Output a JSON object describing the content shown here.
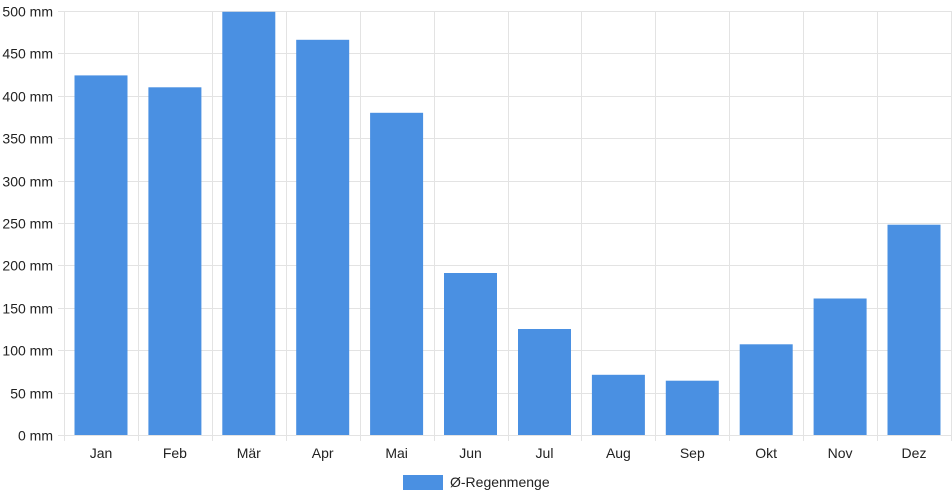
{
  "chart_data": {
    "type": "bar",
    "categories": [
      "Jan",
      "Feb",
      "Mär",
      "Apr",
      "Mai",
      "Jun",
      "Jul",
      "Aug",
      "Sep",
      "Okt",
      "Nov",
      "Dez"
    ],
    "series": [
      {
        "name": "Ø-Regenmenge",
        "values": [
          424,
          410,
          499,
          466,
          380,
          191,
          125,
          71,
          64,
          107,
          161,
          248
        ],
        "color": "#4a90e2"
      }
    ],
    "y_tick_labels": [
      "0 mm",
      "50 mm",
      "100 mm",
      "150 mm",
      "200 mm",
      "250 mm",
      "300 mm",
      "350 mm",
      "400 mm",
      "450 mm",
      "500 mm"
    ],
    "ylim": [
      0,
      500
    ],
    "y_unit": "mm",
    "grid": true,
    "legend_position": "bottom-center",
    "title": "",
    "xlabel": "",
    "ylabel": ""
  }
}
